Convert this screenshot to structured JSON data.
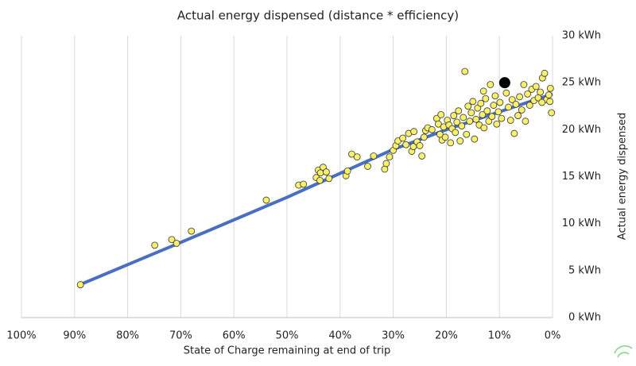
{
  "chart_data": {
    "type": "scatter",
    "title": "Actual energy dispensed (distance * efficiency)",
    "x_label": "State of Charge remaining at end of trip",
    "y_label": "Actual energy dispensed",
    "xlim": [
      100,
      0
    ],
    "xticks": [
      {
        "value": 100,
        "label": "100%"
      },
      {
        "value": 90,
        "label": "90%"
      },
      {
        "value": 80,
        "label": "80%"
      },
      {
        "value": 70,
        "label": "70%"
      },
      {
        "value": 60,
        "label": "60%"
      },
      {
        "value": 50,
        "label": "50%"
      },
      {
        "value": 40,
        "label": "40%"
      },
      {
        "value": 30,
        "label": "30%"
      },
      {
        "value": 20,
        "label": "20%"
      },
      {
        "value": 10,
        "label": "10%"
      },
      {
        "value": 0,
        "label": "0%"
      }
    ],
    "ylim": [
      0,
      30
    ],
    "yticks": [
      {
        "value": 0,
        "label": "0 kWh"
      },
      {
        "value": 5,
        "label": "5 kWh"
      },
      {
        "value": 10,
        "label": "10 kWh"
      },
      {
        "value": 15,
        "label": "15 kWh"
      },
      {
        "value": 20,
        "label": "20 kWh"
      },
      {
        "value": 25,
        "label": "25 kWh"
      },
      {
        "value": 30,
        "label": "30 kWh"
      }
    ],
    "grid": true,
    "points": {
      "color": "#f7f06c",
      "x": [
        88.9,
        74.9,
        71.7,
        70.8,
        68.0,
        53.9,
        47.8,
        46.9,
        44.5,
        44.1,
        43.7,
        43.2,
        42.6,
        42.1,
        43.8,
        38.9,
        38.6,
        37.8,
        36.8,
        34.8,
        33.7,
        31.6,
        31.3,
        30.7,
        30.0,
        29.5,
        29.1,
        28.2,
        27.6,
        27.1,
        26.5,
        26.2,
        26.1,
        25.5,
        25.0,
        24.6,
        24.2,
        23.9,
        23.5,
        22.7,
        21.8,
        21.5,
        21.2,
        20.8,
        20.5,
        20.2,
        19.8,
        19.5,
        19.2,
        18.9,
        18.6,
        18.3,
        18.0,
        17.7,
        17.4,
        17.1,
        16.8,
        16.5,
        16.2,
        15.9,
        15.6,
        15.3,
        15.0,
        14.7,
        14.4,
        14.1,
        13.8,
        13.5,
        13.2,
        12.9,
        12.6,
        12.3,
        12.0,
        11.7,
        11.4,
        11.1,
        10.8,
        10.5,
        10.2,
        9.9,
        9.6,
        8.7,
        8.3,
        7.9,
        7.6,
        7.2,
        6.9,
        6.5,
        6.2,
        5.8,
        5.4,
        5.1,
        4.7,
        4.3,
        3.9,
        3.5,
        3.1,
        2.7,
        2.3,
        1.9,
        1.5,
        1.1,
        0.7,
        0.4,
        0.2,
        0.5,
        2.0,
        13.0,
        21.0
      ],
      "values": [
        3.5,
        7.7,
        8.3,
        7.9,
        9.2,
        12.5,
        14.1,
        14.2,
        14.9,
        15.7,
        15.4,
        16.0,
        15.5,
        14.8,
        14.6,
        15.1,
        15.6,
        17.4,
        17.1,
        16.1,
        17.2,
        15.8,
        16.4,
        17.1,
        17.8,
        18.3,
        18.8,
        19.1,
        18.4,
        19.6,
        17.7,
        18.2,
        19.8,
        18.7,
        18.3,
        17.2,
        19.2,
        19.9,
        20.2,
        20.0,
        21.2,
        20.6,
        19.5,
        18.9,
        20.3,
        19.2,
        21.0,
        20.5,
        18.6,
        20.1,
        21.5,
        19.7,
        20.8,
        22.0,
        18.8,
        20.4,
        21.3,
        26.2,
        19.5,
        22.5,
        20.9,
        21.8,
        23.0,
        19.0,
        21.1,
        22.3,
        20.5,
        22.8,
        21.6,
        20.2,
        23.3,
        22.0,
        20.9,
        24.8,
        21.4,
        22.6,
        23.6,
        20.6,
        21.9,
        22.9,
        21.2,
        23.9,
        22.4,
        21.0,
        23.2,
        19.6,
        22.7,
        21.5,
        23.5,
        22.1,
        24.8,
        20.9,
        23.8,
        22.6,
        24.3,
        23.1,
        24.6,
        23.4,
        24.0,
        25.5,
        26.0,
        23.2,
        23.7,
        24.4,
        21.8,
        23.0,
        22.9,
        24.1,
        21.6
      ]
    },
    "highlight": {
      "color": "#000000",
      "x": [
        9
      ],
      "values": [
        25
      ]
    },
    "trendline": {
      "color": "#4a6fc0",
      "x": [
        89,
        70,
        50,
        30,
        20,
        10,
        0
      ],
      "values": [
        3.5,
        8.0,
        12.8,
        17.9,
        20.0,
        21.9,
        23.8
      ]
    }
  }
}
